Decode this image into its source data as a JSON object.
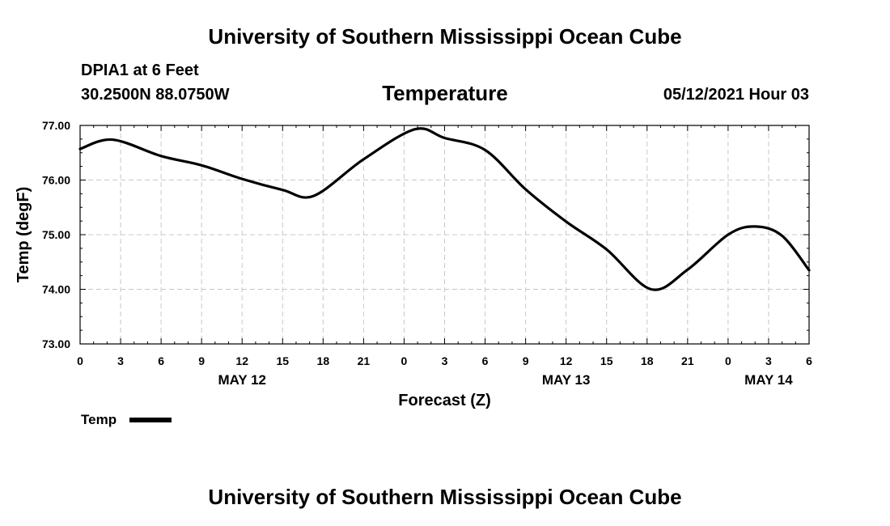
{
  "header": {
    "title": "University of Southern Mississippi Ocean Cube",
    "station": "DPIA1 at 6 Feet",
    "coords": "30.2500N  88.0750W",
    "datetime": "05/12/2021 Hour 03"
  },
  "footer": {
    "title": "University of Southern Mississippi Ocean Cube"
  },
  "chart_data": {
    "type": "line",
    "title": "Temperature",
    "xlabel": "Forecast (Z)",
    "ylabel": "Temp (degF)",
    "ylim": [
      73.0,
      77.0
    ],
    "xlim": [
      0,
      54
    ],
    "x_unit": "hours from 00Z May 12",
    "yticks": [
      "73.00",
      "74.00",
      "75.00",
      "76.00",
      "77.00"
    ],
    "xticks": [
      "0",
      "3",
      "6",
      "9",
      "12",
      "15",
      "18",
      "21",
      "0",
      "3",
      "6",
      "9",
      "12",
      "15",
      "18",
      "21",
      "0",
      "3",
      "6"
    ],
    "date_labels": [
      {
        "label": "MAY 12",
        "x": 12
      },
      {
        "label": "MAY 13",
        "x": 36
      },
      {
        "label": "MAY 14",
        "x": 51
      }
    ],
    "grid": true,
    "legend": "bottom-left",
    "series": [
      {
        "name": "Temp",
        "x": [
          0,
          2.4,
          6,
          9,
          12,
          15,
          17.3,
          21,
          24.8,
          27,
          30,
          33,
          36,
          39,
          42.3,
          45,
          48,
          50,
          52,
          54
        ],
        "values": [
          76.57,
          76.74,
          76.44,
          76.27,
          76.02,
          75.82,
          75.71,
          76.38,
          76.93,
          76.77,
          76.55,
          75.83,
          75.24,
          74.73,
          74.0,
          74.36,
          75.0,
          75.15,
          74.98,
          74.35
        ]
      }
    ]
  }
}
